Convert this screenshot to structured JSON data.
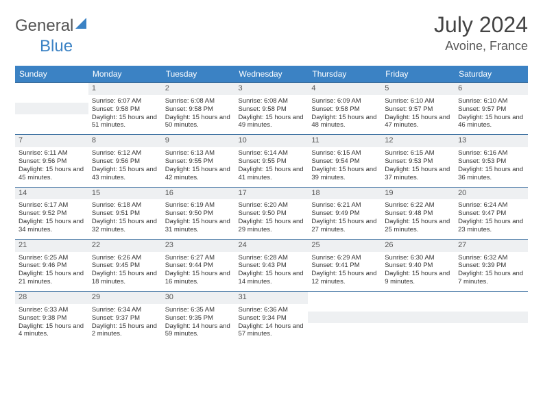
{
  "logo": {
    "part1": "General",
    "part2": "Blue"
  },
  "title": "July 2024",
  "location": "Avoine, France",
  "colors": {
    "header_bg": "#3b82c4",
    "header_text": "#ffffff",
    "day_num_bg": "#eef0f2",
    "border": "#3b6fa0",
    "text": "#333333"
  },
  "days_of_week": [
    "Sunday",
    "Monday",
    "Tuesday",
    "Wednesday",
    "Thursday",
    "Friday",
    "Saturday"
  ],
  "first_weekday_index": 1,
  "days": [
    {
      "n": "1",
      "sunrise": "6:07 AM",
      "sunset": "9:58 PM",
      "daylight": "15 hours and 51 minutes."
    },
    {
      "n": "2",
      "sunrise": "6:08 AM",
      "sunset": "9:58 PM",
      "daylight": "15 hours and 50 minutes."
    },
    {
      "n": "3",
      "sunrise": "6:08 AM",
      "sunset": "9:58 PM",
      "daylight": "15 hours and 49 minutes."
    },
    {
      "n": "4",
      "sunrise": "6:09 AM",
      "sunset": "9:58 PM",
      "daylight": "15 hours and 48 minutes."
    },
    {
      "n": "5",
      "sunrise": "6:10 AM",
      "sunset": "9:57 PM",
      "daylight": "15 hours and 47 minutes."
    },
    {
      "n": "6",
      "sunrise": "6:10 AM",
      "sunset": "9:57 PM",
      "daylight": "15 hours and 46 minutes."
    },
    {
      "n": "7",
      "sunrise": "6:11 AM",
      "sunset": "9:56 PM",
      "daylight": "15 hours and 45 minutes."
    },
    {
      "n": "8",
      "sunrise": "6:12 AM",
      "sunset": "9:56 PM",
      "daylight": "15 hours and 43 minutes."
    },
    {
      "n": "9",
      "sunrise": "6:13 AM",
      "sunset": "9:55 PM",
      "daylight": "15 hours and 42 minutes."
    },
    {
      "n": "10",
      "sunrise": "6:14 AM",
      "sunset": "9:55 PM",
      "daylight": "15 hours and 41 minutes."
    },
    {
      "n": "11",
      "sunrise": "6:15 AM",
      "sunset": "9:54 PM",
      "daylight": "15 hours and 39 minutes."
    },
    {
      "n": "12",
      "sunrise": "6:15 AM",
      "sunset": "9:53 PM",
      "daylight": "15 hours and 37 minutes."
    },
    {
      "n": "13",
      "sunrise": "6:16 AM",
      "sunset": "9:53 PM",
      "daylight": "15 hours and 36 minutes."
    },
    {
      "n": "14",
      "sunrise": "6:17 AM",
      "sunset": "9:52 PM",
      "daylight": "15 hours and 34 minutes."
    },
    {
      "n": "15",
      "sunrise": "6:18 AM",
      "sunset": "9:51 PM",
      "daylight": "15 hours and 32 minutes."
    },
    {
      "n": "16",
      "sunrise": "6:19 AM",
      "sunset": "9:50 PM",
      "daylight": "15 hours and 31 minutes."
    },
    {
      "n": "17",
      "sunrise": "6:20 AM",
      "sunset": "9:50 PM",
      "daylight": "15 hours and 29 minutes."
    },
    {
      "n": "18",
      "sunrise": "6:21 AM",
      "sunset": "9:49 PM",
      "daylight": "15 hours and 27 minutes."
    },
    {
      "n": "19",
      "sunrise": "6:22 AM",
      "sunset": "9:48 PM",
      "daylight": "15 hours and 25 minutes."
    },
    {
      "n": "20",
      "sunrise": "6:24 AM",
      "sunset": "9:47 PM",
      "daylight": "15 hours and 23 minutes."
    },
    {
      "n": "21",
      "sunrise": "6:25 AM",
      "sunset": "9:46 PM",
      "daylight": "15 hours and 21 minutes."
    },
    {
      "n": "22",
      "sunrise": "6:26 AM",
      "sunset": "9:45 PM",
      "daylight": "15 hours and 18 minutes."
    },
    {
      "n": "23",
      "sunrise": "6:27 AM",
      "sunset": "9:44 PM",
      "daylight": "15 hours and 16 minutes."
    },
    {
      "n": "24",
      "sunrise": "6:28 AM",
      "sunset": "9:43 PM",
      "daylight": "15 hours and 14 minutes."
    },
    {
      "n": "25",
      "sunrise": "6:29 AM",
      "sunset": "9:41 PM",
      "daylight": "15 hours and 12 minutes."
    },
    {
      "n": "26",
      "sunrise": "6:30 AM",
      "sunset": "9:40 PM",
      "daylight": "15 hours and 9 minutes."
    },
    {
      "n": "27",
      "sunrise": "6:32 AM",
      "sunset": "9:39 PM",
      "daylight": "15 hours and 7 minutes."
    },
    {
      "n": "28",
      "sunrise": "6:33 AM",
      "sunset": "9:38 PM",
      "daylight": "15 hours and 4 minutes."
    },
    {
      "n": "29",
      "sunrise": "6:34 AM",
      "sunset": "9:37 PM",
      "daylight": "15 hours and 2 minutes."
    },
    {
      "n": "30",
      "sunrise": "6:35 AM",
      "sunset": "9:35 PM",
      "daylight": "14 hours and 59 minutes."
    },
    {
      "n": "31",
      "sunrise": "6:36 AM",
      "sunset": "9:34 PM",
      "daylight": "14 hours and 57 minutes."
    }
  ],
  "labels": {
    "sunrise": "Sunrise:",
    "sunset": "Sunset:",
    "daylight": "Daylight:"
  }
}
